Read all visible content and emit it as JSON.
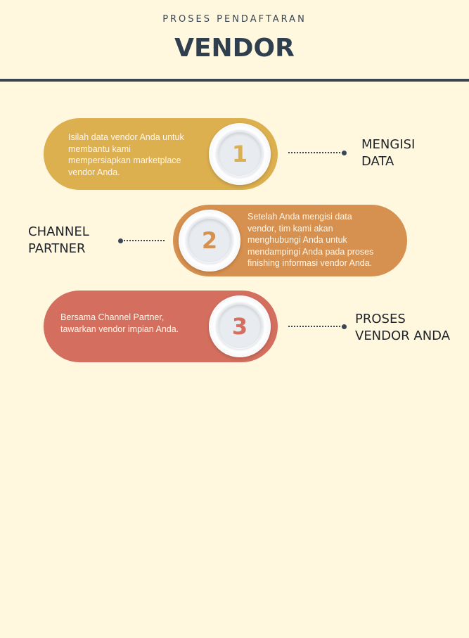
{
  "header": {
    "subtitle": "PROSES PENDAFTARAN",
    "title": "VENDOR"
  },
  "colors": {
    "background": "#fff8df",
    "rule": "#39454f",
    "step1": "#dcaf4f",
    "step2": "#d6904f",
    "step3": "#d46f5f",
    "connector": "#3a4655"
  },
  "steps": [
    {
      "number": "1",
      "text_lines": [
        "Isilah data vendor Anda untuk",
        "membantu kami",
        "mempersiapkan marketplace",
        "vendor Anda."
      ],
      "label_lines": [
        "MENGISI",
        "DATA"
      ]
    },
    {
      "number": "2",
      "text_lines": [
        "Setelah Anda mengisi data",
        "vendor, tim kami akan",
        "menghubungi Anda untuk",
        "mendampingi Anda pada proses",
        "finishing informasi vendor Anda."
      ],
      "label_lines": [
        "CHANNEL",
        "PARTNER"
      ]
    },
    {
      "number": "3",
      "text_lines": [
        "Bersama Channel Partner,",
        "tawarkan vendor impian Anda."
      ],
      "label_lines": [
        "PROSES",
        "VENDOR ANDA"
      ]
    }
  ]
}
